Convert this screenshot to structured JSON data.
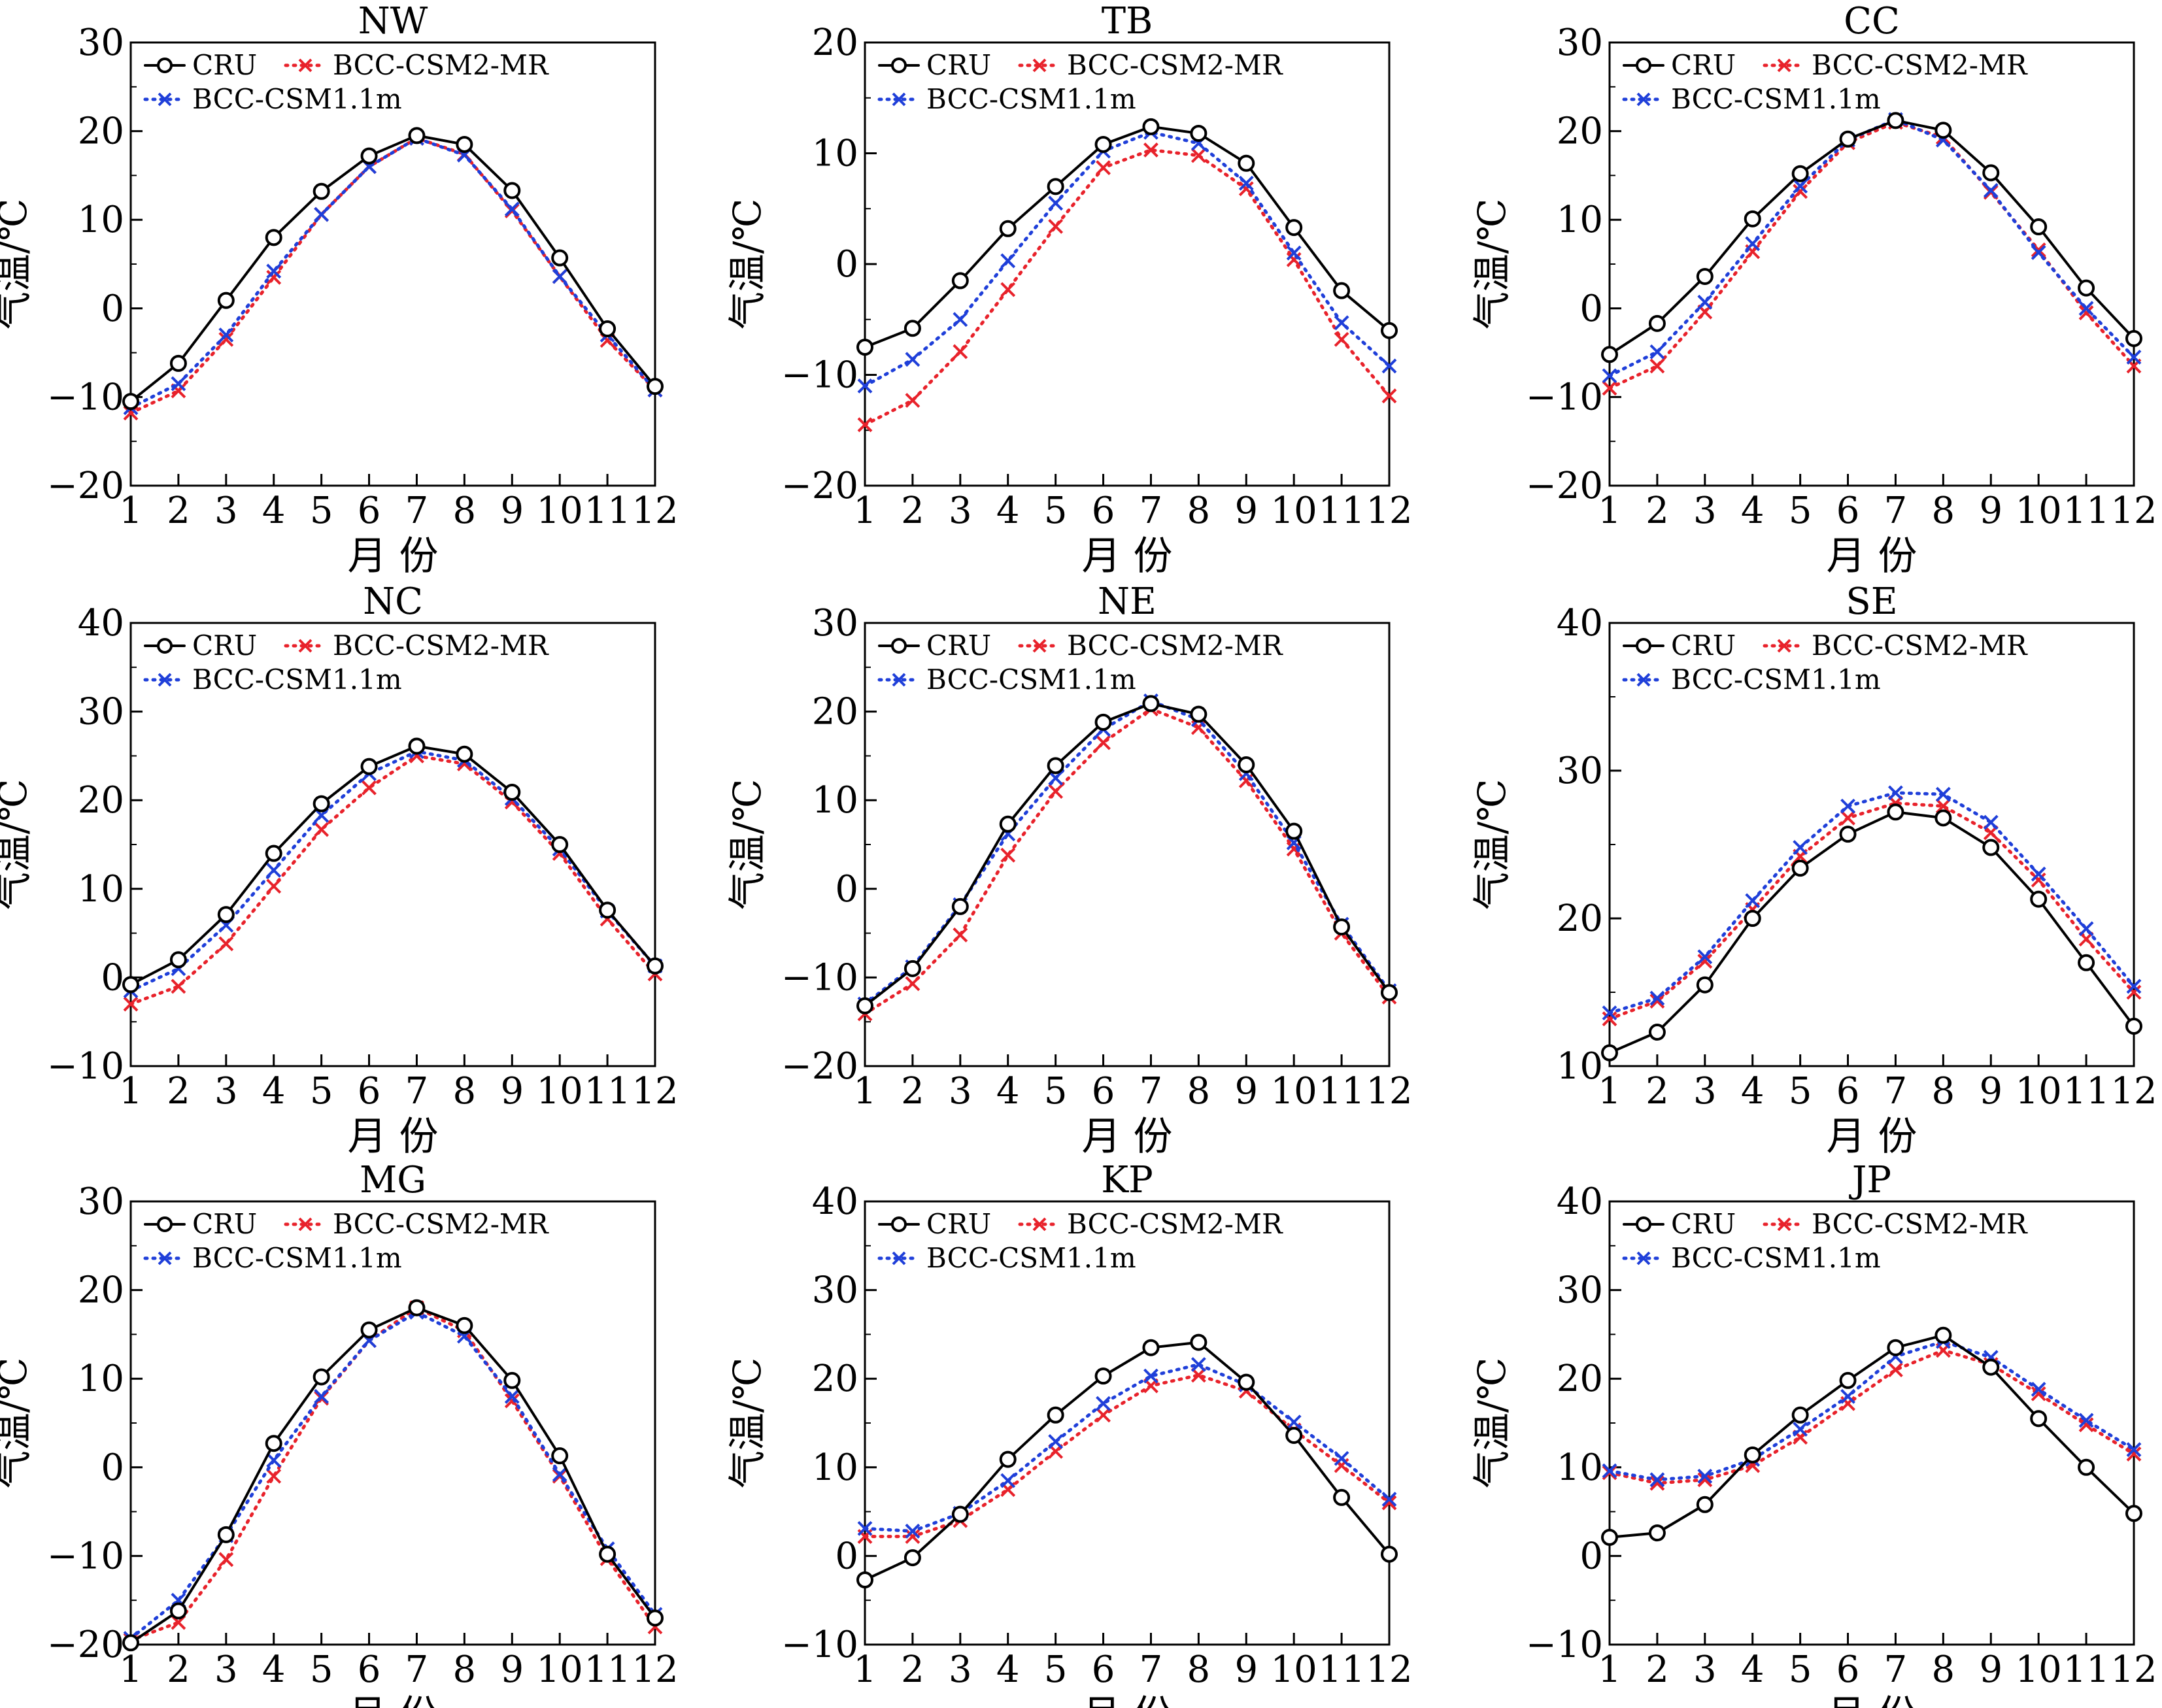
{
  "figure": {
    "xlabel": "月  份",
    "ylabel": "气温/℃",
    "legend": [
      "CRU",
      "BCC-CSM2-MR",
      "BCC-CSM1.1m"
    ],
    "colors": {
      "CRU": "#000000",
      "BCC-CSM2-MR": "#e8222b",
      "BCC-CSM1.1m": "#1f3fd9"
    }
  },
  "chart_data": [
    {
      "type": "line",
      "title": "NW",
      "xlabel": "月  份",
      "ylabel": "气温/℃",
      "x": [
        1,
        2,
        3,
        4,
        5,
        6,
        7,
        8,
        9,
        10,
        11,
        12
      ],
      "ylim": [
        -20,
        30
      ],
      "yticks": [
        -20,
        -10,
        0,
        10,
        20,
        30
      ],
      "legend_position": "top-left",
      "series": [
        {
          "name": "CRU",
          "values": [
            -10.5,
            -6.2,
            0.9,
            8.0,
            13.2,
            17.2,
            19.5,
            18.5,
            13.3,
            5.7,
            -2.3,
            -8.8
          ]
        },
        {
          "name": "BCC-CSM2-MR",
          "values": [
            -11.8,
            -9.3,
            -3.5,
            3.5,
            10.6,
            16.0,
            19.2,
            17.4,
            11.0,
            3.6,
            -3.6,
            -9.2
          ]
        },
        {
          "name": "BCC-CSM1.1m",
          "values": [
            -11.2,
            -8.5,
            -3.0,
            4.2,
            10.6,
            16.0,
            19.2,
            17.3,
            11.2,
            3.6,
            -3.0,
            -9.2
          ]
        }
      ]
    },
    {
      "type": "line",
      "title": "TB",
      "xlabel": "月  份",
      "ylabel": "气温/℃",
      "x": [
        1,
        2,
        3,
        4,
        5,
        6,
        7,
        8,
        9,
        10,
        11,
        12
      ],
      "ylim": [
        -20,
        20
      ],
      "yticks": [
        -20,
        -10,
        0,
        10,
        20
      ],
      "legend_position": "top-left",
      "series": [
        {
          "name": "CRU",
          "values": [
            -7.5,
            -5.8,
            -1.5,
            3.2,
            7.0,
            10.8,
            12.4,
            11.8,
            9.1,
            3.3,
            -2.4,
            -6.0
          ]
        },
        {
          "name": "BCC-CSM2-MR",
          "values": [
            -14.5,
            -12.3,
            -7.9,
            -2.3,
            3.4,
            8.7,
            10.3,
            9.8,
            6.8,
            0.4,
            -6.8,
            -11.9
          ]
        },
        {
          "name": "BCC-CSM1.1m",
          "values": [
            -11.0,
            -8.6,
            -5.0,
            0.3,
            5.5,
            10.2,
            11.9,
            10.9,
            7.3,
            1.0,
            -5.3,
            -9.2
          ]
        }
      ]
    },
    {
      "type": "line",
      "title": "CC",
      "xlabel": "月  份",
      "ylabel": "气温/℃",
      "x": [
        1,
        2,
        3,
        4,
        5,
        6,
        7,
        8,
        9,
        10,
        11,
        12
      ],
      "ylim": [
        -20,
        30
      ],
      "yticks": [
        -20,
        -10,
        0,
        10,
        20,
        30
      ],
      "legend_position": "top-left",
      "series": [
        {
          "name": "CRU",
          "values": [
            -5.2,
            -1.7,
            3.6,
            10.1,
            15.2,
            19.1,
            21.2,
            20.1,
            15.3,
            9.2,
            2.3,
            -3.4
          ]
        },
        {
          "name": "BCC-CSM2-MR",
          "values": [
            -9.0,
            -6.5,
            -0.4,
            6.4,
            13.2,
            18.7,
            21.0,
            19.3,
            13.1,
            6.6,
            -0.5,
            -6.5
          ]
        },
        {
          "name": "BCC-CSM1.1m",
          "values": [
            -7.6,
            -4.9,
            0.7,
            7.3,
            13.8,
            19.0,
            21.3,
            19.0,
            13.3,
            6.3,
            0.0,
            -5.5
          ]
        }
      ]
    },
    {
      "type": "line",
      "title": "NC",
      "xlabel": "月  份",
      "ylabel": "气温/℃",
      "x": [
        1,
        2,
        3,
        4,
        5,
        6,
        7,
        8,
        9,
        10,
        11,
        12
      ],
      "ylim": [
        -10,
        40
      ],
      "yticks": [
        -10,
        0,
        10,
        20,
        30,
        40
      ],
      "legend_position": "top-left",
      "series": [
        {
          "name": "CRU",
          "values": [
            -0.8,
            2.0,
            7.1,
            14.0,
            19.6,
            23.8,
            26.1,
            25.2,
            20.9,
            15.0,
            7.6,
            1.3
          ]
        },
        {
          "name": "BCC-CSM2-MR",
          "values": [
            -3.0,
            -1.0,
            3.8,
            10.3,
            16.7,
            21.4,
            25.0,
            24.1,
            19.8,
            14.0,
            6.6,
            0.4
          ]
        },
        {
          "name": "BCC-CSM1.1m",
          "values": [
            -1.5,
            1.0,
            5.9,
            12.1,
            18.3,
            23.0,
            25.5,
            24.5,
            20.2,
            14.5,
            7.5,
            1.3
          ]
        }
      ]
    },
    {
      "type": "line",
      "title": "NE",
      "xlabel": "月  份",
      "ylabel": "气温/℃",
      "x": [
        1,
        2,
        3,
        4,
        5,
        6,
        7,
        8,
        9,
        10,
        11,
        12
      ],
      "ylim": [
        -20,
        30
      ],
      "yticks": [
        -20,
        -10,
        0,
        10,
        20,
        30
      ],
      "legend_position": "top-left",
      "series": [
        {
          "name": "CRU",
          "values": [
            -13.2,
            -9.0,
            -2.0,
            7.3,
            13.9,
            18.8,
            20.9,
            19.7,
            14.0,
            6.5,
            -4.3,
            -11.7
          ]
        },
        {
          "name": "BCC-CSM2-MR",
          "values": [
            -14.1,
            -10.7,
            -5.2,
            3.8,
            11.0,
            16.5,
            20.3,
            18.2,
            12.2,
            4.5,
            -5.0,
            -12.2
          ]
        },
        {
          "name": "BCC-CSM1.1m",
          "values": [
            -13.0,
            -8.8,
            -1.8,
            6.2,
            12.5,
            18.0,
            21.2,
            19.1,
            13.0,
            5.2,
            -4.0,
            -11.5
          ]
        }
      ]
    },
    {
      "type": "line",
      "title": "SE",
      "xlabel": "月  份",
      "ylabel": "气温/℃",
      "x": [
        1,
        2,
        3,
        4,
        5,
        6,
        7,
        8,
        9,
        10,
        11,
        12
      ],
      "ylim": [
        10,
        40
      ],
      "yticks": [
        10,
        20,
        30,
        40
      ],
      "legend_position": "top-left",
      "series": [
        {
          "name": "CRU",
          "values": [
            10.9,
            12.3,
            15.5,
            20.0,
            23.4,
            25.7,
            27.2,
            26.8,
            24.8,
            21.3,
            17.0,
            12.7
          ]
        },
        {
          "name": "BCC-CSM2-MR",
          "values": [
            13.2,
            14.4,
            17.1,
            20.6,
            24.2,
            26.8,
            27.8,
            27.6,
            25.8,
            22.6,
            18.6,
            15.0
          ]
        },
        {
          "name": "BCC-CSM1.1m",
          "values": [
            13.6,
            14.6,
            17.4,
            21.2,
            24.8,
            27.6,
            28.5,
            28.4,
            26.5,
            23.0,
            19.3,
            15.4
          ]
        }
      ]
    },
    {
      "type": "line",
      "title": "MG",
      "xlabel": "月  份",
      "ylabel": "气温/℃",
      "x": [
        1,
        2,
        3,
        4,
        5,
        6,
        7,
        8,
        9,
        10,
        11,
        12
      ],
      "ylim": [
        -20,
        30
      ],
      "yticks": [
        -20,
        -10,
        0,
        10,
        20,
        30
      ],
      "legend_position": "top-left",
      "series": [
        {
          "name": "CRU",
          "values": [
            -19.8,
            -16.2,
            -7.6,
            2.7,
            10.2,
            15.5,
            18.0,
            16.0,
            9.8,
            1.3,
            -9.8,
            -17.0
          ]
        },
        {
          "name": "BCC-CSM2-MR",
          "values": [
            -19.5,
            -17.5,
            -10.4,
            -1.0,
            7.8,
            14.3,
            18.0,
            15.4,
            7.5,
            -1.0,
            -10.3,
            -18.0
          ]
        },
        {
          "name": "BCC-CSM1.1m",
          "values": [
            -19.3,
            -15.0,
            -7.7,
            0.8,
            8.0,
            14.3,
            17.5,
            14.8,
            8.0,
            -0.8,
            -9.2,
            -16.6
          ]
        }
      ]
    },
    {
      "type": "line",
      "title": "KP",
      "xlabel": "月  份",
      "ylabel": "气温/℃",
      "x": [
        1,
        2,
        3,
        4,
        5,
        6,
        7,
        8,
        9,
        10,
        11,
        12
      ],
      "ylim": [
        -10,
        40
      ],
      "yticks": [
        -10,
        0,
        10,
        20,
        30,
        40
      ],
      "legend_position": "top-left",
      "series": [
        {
          "name": "CRU",
          "values": [
            -2.7,
            -0.2,
            4.7,
            10.9,
            15.9,
            20.3,
            23.5,
            24.1,
            19.6,
            13.6,
            6.6,
            0.2
          ]
        },
        {
          "name": "BCC-CSM2-MR",
          "values": [
            2.2,
            2.2,
            4.0,
            7.5,
            11.8,
            15.9,
            19.2,
            20.4,
            18.6,
            14.2,
            10.2,
            6.0
          ]
        },
        {
          "name": "BCC-CSM1.1m",
          "values": [
            3.1,
            2.8,
            4.8,
            8.5,
            12.9,
            17.2,
            20.3,
            21.6,
            19.3,
            15.1,
            11.0,
            6.4
          ]
        }
      ]
    },
    {
      "type": "line",
      "title": "JP",
      "xlabel": "月  份",
      "ylabel": "气温/℃",
      "x": [
        1,
        2,
        3,
        4,
        5,
        6,
        7,
        8,
        9,
        10,
        11,
        12
      ],
      "ylim": [
        -10,
        40
      ],
      "yticks": [
        -10,
        0,
        10,
        20,
        30,
        40
      ],
      "legend_position": "top-left",
      "series": [
        {
          "name": "CRU",
          "values": [
            2.1,
            2.6,
            5.8,
            11.4,
            15.9,
            19.8,
            23.5,
            24.9,
            21.3,
            15.5,
            10.0,
            4.8
          ]
        },
        {
          "name": "BCC-CSM2-MR",
          "values": [
            9.4,
            8.2,
            8.6,
            10.2,
            13.4,
            17.2,
            21.0,
            23.2,
            21.6,
            18.3,
            14.8,
            11.5
          ]
        },
        {
          "name": "BCC-CSM1.1m",
          "values": [
            9.6,
            8.6,
            9.0,
            10.9,
            14.3,
            18.0,
            22.5,
            24.2,
            22.4,
            18.8,
            15.3,
            12.0
          ]
        }
      ]
    }
  ]
}
